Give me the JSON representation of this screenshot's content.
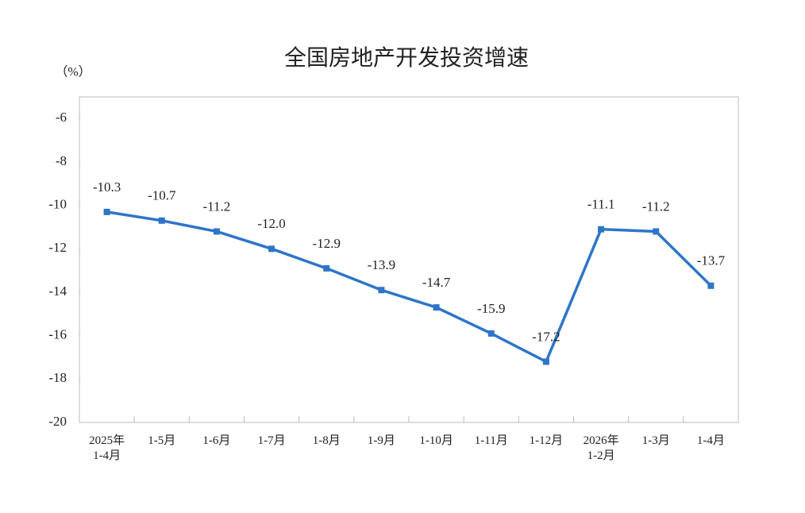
{
  "chart_data": {
    "type": "line",
    "title": "全国房地产开发投资增速",
    "unit_label": "（%）",
    "categories": [
      "2025年\n1-4月",
      "1-5月",
      "1-6月",
      "1-7月",
      "1-8月",
      "1-9月",
      "1-10月",
      "1-11月",
      "1-12月",
      "2026年\n1-2月",
      "1-3月",
      "1-4月"
    ],
    "series": [
      {
        "name": "全国房地产开发投资增速",
        "color": "#2e75c8",
        "values": [
          -10.3,
          -10.7,
          -11.2,
          -12.0,
          -12.9,
          -13.9,
          -14.7,
          -15.9,
          -17.2,
          -11.1,
          -11.2,
          -13.7
        ],
        "value_labels": [
          "-10.3",
          "-10.7",
          "-11.2",
          "-12.0",
          "-12.9",
          "-13.9",
          "-14.7",
          "-15.9",
          "-17.2",
          "-11.1",
          "-11.2",
          "-13.7"
        ]
      }
    ],
    "ylim": [
      -20,
      -5
    ],
    "yticks": [
      -20,
      -18,
      -16,
      -14,
      -12,
      -10,
      -8,
      -6
    ],
    "grid": false
  }
}
